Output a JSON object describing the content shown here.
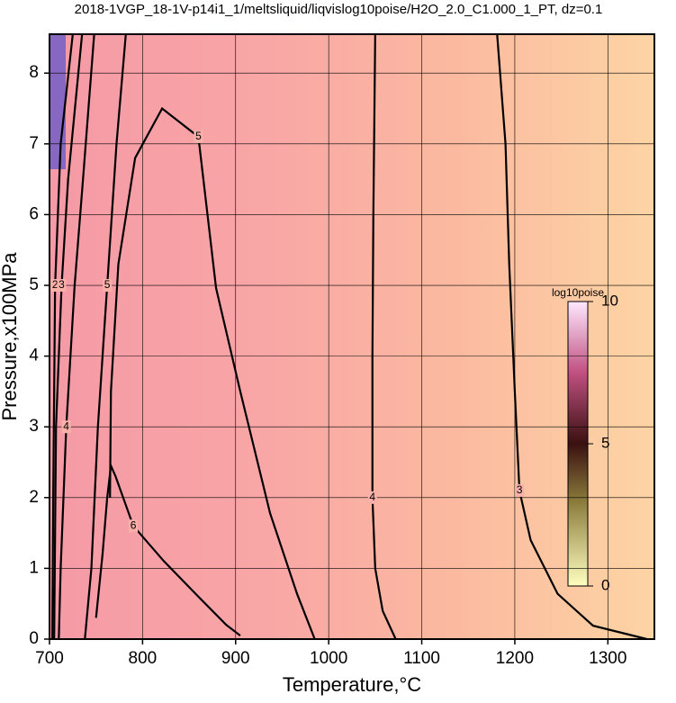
{
  "chart_data": {
    "type": "contour",
    "title": "2018-1VGP_18-1V-p14i1_1/meltsliquid/liqvislog10poise/H2O_2.0_C1.000_1_PT, dz=0.1",
    "x_label": "Temperature,°C",
    "y_label": "Pressure,x100MPa",
    "xlim": [
      700,
      1350
    ],
    "xticks": [
      700,
      800,
      900,
      1000,
      1100,
      1200,
      1300
    ],
    "ylim": [
      0,
      8.55
    ],
    "yticks": [
      0,
      1,
      2,
      3,
      4,
      5,
      6,
      7,
      8
    ],
    "grid": true,
    "contours": [
      {
        "level": 2,
        "x": [
          703,
          704,
          706,
          712,
          725
        ],
        "y": [
          0,
          2,
          5,
          7,
          8.55
        ]
      },
      {
        "level": 3,
        "x": [
          705,
          706,
          707,
          713,
          720,
          735
        ],
        "y": [
          0,
          1.5,
          3,
          5,
          6.5,
          8.55
        ]
      },
      {
        "level": 4,
        "x": [
          710,
          712,
          715,
          718,
          727,
          736,
          748
        ],
        "y": [
          0,
          1,
          2,
          3,
          5,
          6.5,
          8.55
        ]
      },
      {
        "level": 5,
        "x": [
          738,
          745,
          752,
          762,
          772,
          782
        ],
        "y": [
          0,
          1,
          3,
          5,
          7,
          8.55
        ]
      },
      {
        "level": 6,
        "x": [
          750,
          757,
          762,
          766,
          771,
          790,
          823,
          860,
          890,
          905
        ],
        "y": [
          0.3,
          1.2,
          2,
          2.45,
          2.3,
          1.6,
          1.1,
          0.6,
          0.2,
          0.05
        ]
      },
      {
        "level": 5,
        "x": [
          985,
          966,
          937,
          905,
          879,
          860,
          821,
          792,
          774,
          766,
          765
        ],
        "y": [
          0,
          0.64,
          1.78,
          3.5,
          4.96,
          7.1,
          7.5,
          6.8,
          5.3,
          3.5,
          2
        ]
      },
      {
        "level": 4,
        "x": [
          1050,
          1048,
          1047,
          1047,
          1050,
          1058,
          1072
        ],
        "y": [
          8.55,
          6,
          4,
          2,
          1,
          0.4,
          0
        ]
      },
      {
        "level": 3,
        "x": [
          1181,
          1190,
          1194,
          1200,
          1205,
          1217,
          1246,
          1284,
          1342
        ],
        "y": [
          8.55,
          7,
          5.3,
          3.5,
          2.1,
          1.4,
          0.64,
          0.19,
          0
        ]
      }
    ],
    "colorbar": {
      "label": "log10poise",
      "lim": [
        0,
        10
      ],
      "ticks": [
        0,
        5,
        10
      ]
    }
  }
}
